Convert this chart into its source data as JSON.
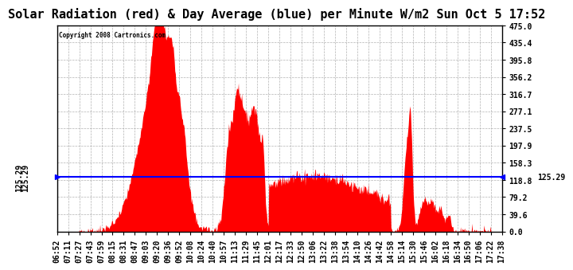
{
  "title": "Solar Radiation (red) & Day Average (blue) per Minute W/m2 Sun Oct 5 17:52",
  "copyright": "Copyright 2008 Cartronics.com",
  "y_max": 475.0,
  "y_min": 0.0,
  "y_ticks": [
    0.0,
    39.6,
    79.2,
    118.8,
    158.3,
    197.9,
    237.5,
    277.1,
    316.7,
    356.2,
    395.8,
    435.4,
    475.0
  ],
  "day_average": 125.29,
  "x_labels": [
    "06:52",
    "07:11",
    "07:27",
    "07:43",
    "07:59",
    "08:15",
    "08:31",
    "08:47",
    "09:03",
    "09:20",
    "09:36",
    "09:52",
    "10:08",
    "10:24",
    "10:40",
    "10:57",
    "11:13",
    "11:29",
    "11:45",
    "12:01",
    "12:17",
    "12:33",
    "12:50",
    "13:06",
    "13:22",
    "13:38",
    "13:54",
    "14:10",
    "14:26",
    "14:42",
    "14:58",
    "15:14",
    "15:30",
    "15:46",
    "16:02",
    "16:18",
    "16:34",
    "16:50",
    "17:06",
    "17:22",
    "17:38"
  ],
  "background_color": "#ffffff",
  "fill_color": "#ff0000",
  "line_color": "#0000ff",
  "grid_color": "#aaaaaa",
  "title_fontsize": 11,
  "tick_fontsize": 7
}
